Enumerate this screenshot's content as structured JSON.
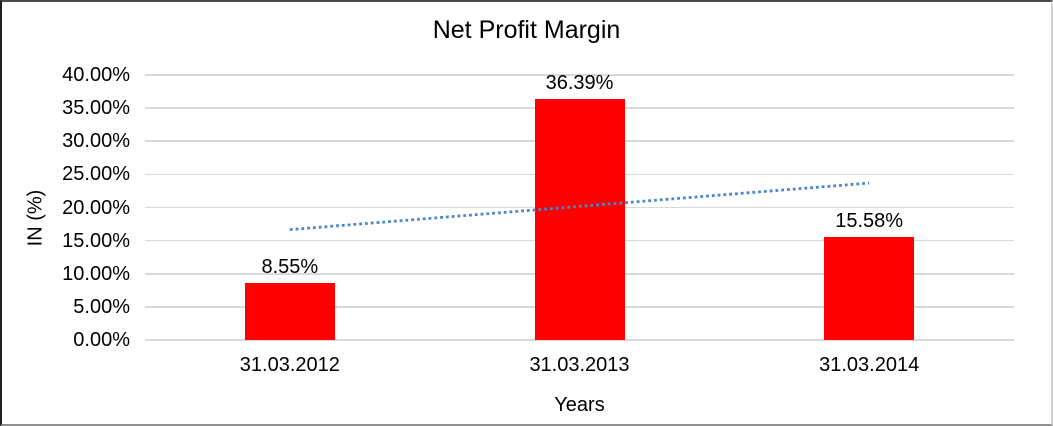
{
  "chart_data": {
    "type": "bar",
    "title": "Net Profit Margin",
    "xlabel": "Years",
    "ylabel": "IN (%)",
    "categories": [
      "31.03.2012",
      "31.03.2013",
      "31.03.2014"
    ],
    "series": [
      {
        "name": "Net Profit Margin",
        "values": [
          8.55,
          36.39,
          15.58
        ]
      }
    ],
    "data_labels": [
      "8.55%",
      "36.39%",
      "15.58%"
    ],
    "ylim": [
      0,
      40
    ],
    "ytick_step": 5,
    "yticks": [
      {
        "value": 40,
        "label": "40.00%"
      },
      {
        "value": 35,
        "label": "35.00%"
      },
      {
        "value": 30,
        "label": "30.00%"
      },
      {
        "value": 25,
        "label": "25.00%"
      },
      {
        "value": 20,
        "label": "20.00%"
      },
      {
        "value": 15,
        "label": "15.00%"
      },
      {
        "value": 10,
        "label": "10.00%"
      },
      {
        "value": 5,
        "label": "5.00%"
      },
      {
        "value": 0,
        "label": "0.00%"
      }
    ],
    "grid": true,
    "legend": "none",
    "trendline": {
      "type": "linear",
      "style": "dotted",
      "start_value": 16.66,
      "end_value": 23.69
    },
    "colors": {
      "bar": "#ff0000",
      "gridline": "#d9d9d9",
      "trendline": "#4a86c8",
      "text": "#000000"
    }
  }
}
